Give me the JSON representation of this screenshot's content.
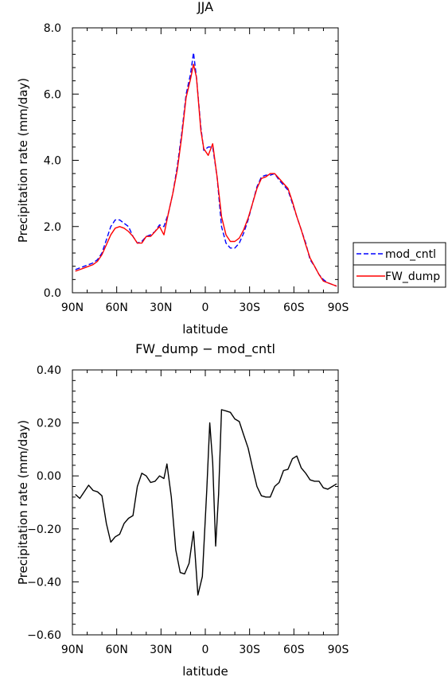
{
  "chart_data": [
    {
      "type": "line",
      "title": "JJA",
      "xlabel": "latitude",
      "ylabel": "Precipitation rate (mm/day)",
      "xlim": [
        90,
        -90
      ],
      "ylim": [
        0,
        8
      ],
      "x_tick_labels": [
        "90N",
        "60N",
        "30N",
        "0",
        "30S",
        "60S",
        "90S"
      ],
      "y_tick_labels": [
        "0.0",
        "2.0",
        "4.0",
        "6.0",
        "8.0"
      ],
      "grid": false,
      "legend_position": "right",
      "series": [
        {
          "name": "mod_cntl",
          "color": "#0000ff",
          "style": "dashed",
          "points": [
            [
              88,
              0.7
            ],
            [
              85,
              0.75
            ],
            [
              82,
              0.8
            ],
            [
              79,
              0.85
            ],
            [
              76,
              0.9
            ],
            [
              73,
              1.0
            ],
            [
              70,
              1.2
            ],
            [
              67,
              1.6
            ],
            [
              64,
              2.0
            ],
            [
              61,
              2.2
            ],
            [
              58,
              2.2
            ],
            [
              55,
              2.1
            ],
            [
              52,
              2.0
            ],
            [
              49,
              1.7
            ],
            [
              46,
              1.5
            ],
            [
              43,
              1.55
            ],
            [
              40,
              1.7
            ],
            [
              37,
              1.75
            ],
            [
              34,
              1.85
            ],
            [
              31,
              2.05
            ],
            [
              28,
              2.0
            ],
            [
              25,
              2.4
            ],
            [
              22,
              3.0
            ],
            [
              19,
              3.8
            ],
            [
              16,
              4.8
            ],
            [
              13,
              6.0
            ],
            [
              10,
              6.6
            ],
            [
              8,
              7.25
            ],
            [
              6,
              6.5
            ],
            [
              3,
              5.0
            ],
            [
              1,
              4.3
            ],
            [
              -2,
              4.4
            ],
            [
              -5,
              4.4
            ],
            [
              -8,
              3.5
            ],
            [
              -11,
              2.0
            ],
            [
              -14,
              1.5
            ],
            [
              -17,
              1.35
            ],
            [
              -20,
              1.35
            ],
            [
              -23,
              1.5
            ],
            [
              -26,
              1.8
            ],
            [
              -29,
              2.2
            ],
            [
              -32,
              2.7
            ],
            [
              -35,
              3.2
            ],
            [
              -38,
              3.5
            ],
            [
              -41,
              3.55
            ],
            [
              -44,
              3.55
            ],
            [
              -47,
              3.6
            ],
            [
              -50,
              3.4
            ],
            [
              -53,
              3.25
            ],
            [
              -56,
              3.1
            ],
            [
              -59,
              2.7
            ],
            [
              -62,
              2.3
            ],
            [
              -65,
              1.9
            ],
            [
              -68,
              1.5
            ],
            [
              -71,
              1.0
            ],
            [
              -74,
              0.8
            ],
            [
              -77,
              0.55
            ],
            [
              -80,
              0.4
            ],
            [
              -83,
              0.3
            ],
            [
              -86,
              0.25
            ],
            [
              -89,
              0.2
            ]
          ]
        },
        {
          "name": "FW_dump",
          "color": "#ff0000",
          "style": "solid",
          "points": [
            [
              88,
              0.65
            ],
            [
              85,
              0.7
            ],
            [
              82,
              0.75
            ],
            [
              79,
              0.8
            ],
            [
              76,
              0.85
            ],
            [
              73,
              0.95
            ],
            [
              70,
              1.15
            ],
            [
              67,
              1.45
            ],
            [
              64,
              1.75
            ],
            [
              61,
              1.95
            ],
            [
              58,
              2.0
            ],
            [
              55,
              1.95
            ],
            [
              52,
              1.85
            ],
            [
              49,
              1.7
            ],
            [
              46,
              1.5
            ],
            [
              43,
              1.5
            ],
            [
              40,
              1.7
            ],
            [
              37,
              1.7
            ],
            [
              34,
              1.85
            ],
            [
              31,
              2.0
            ],
            [
              28,
              1.75
            ],
            [
              25,
              2.4
            ],
            [
              22,
              3.0
            ],
            [
              19,
              3.7
            ],
            [
              16,
              4.7
            ],
            [
              13,
              5.9
            ],
            [
              10,
              6.45
            ],
            [
              8,
              6.9
            ],
            [
              6,
              6.5
            ],
            [
              3,
              4.9
            ],
            [
              1,
              4.35
            ],
            [
              -2,
              4.15
            ],
            [
              -5,
              4.5
            ],
            [
              -8,
              3.5
            ],
            [
              -11,
              2.3
            ],
            [
              -14,
              1.75
            ],
            [
              -17,
              1.55
            ],
            [
              -20,
              1.55
            ],
            [
              -23,
              1.65
            ],
            [
              -26,
              1.9
            ],
            [
              -29,
              2.25
            ],
            [
              -32,
              2.7
            ],
            [
              -35,
              3.15
            ],
            [
              -38,
              3.45
            ],
            [
              -41,
              3.5
            ],
            [
              -44,
              3.6
            ],
            [
              -47,
              3.6
            ],
            [
              -50,
              3.45
            ],
            [
              -53,
              3.3
            ],
            [
              -56,
              3.15
            ],
            [
              -59,
              2.75
            ],
            [
              -62,
              2.3
            ],
            [
              -65,
              1.9
            ],
            [
              -68,
              1.45
            ],
            [
              -71,
              1.05
            ],
            [
              -74,
              0.8
            ],
            [
              -77,
              0.55
            ],
            [
              -80,
              0.35
            ],
            [
              -83,
              0.3
            ],
            [
              -86,
              0.25
            ],
            [
              -89,
              0.2
            ]
          ]
        }
      ]
    },
    {
      "type": "line",
      "title": "FW_dump − mod_cntl",
      "xlabel": "latitude",
      "ylabel": "Precipitation rate (mm/day)",
      "xlim": [
        90,
        -90
      ],
      "ylim": [
        -0.6,
        0.4
      ],
      "x_tick_labels": [
        "90N",
        "60N",
        "30N",
        "0",
        "30S",
        "60S",
        "90S"
      ],
      "y_tick_labels": [
        "−0.60",
        "−0.40",
        "−0.20",
        "0.00",
        "0.20",
        "0.40"
      ],
      "grid": false,
      "series": [
        {
          "color": "#000000",
          "style": "solid",
          "points": [
            [
              88,
              -0.07
            ],
            [
              85,
              -0.085
            ],
            [
              82,
              -0.06
            ],
            [
              79,
              -0.035
            ],
            [
              76,
              -0.055
            ],
            [
              73,
              -0.06
            ],
            [
              70,
              -0.075
            ],
            [
              67,
              -0.18
            ],
            [
              64,
              -0.25
            ],
            [
              61,
              -0.23
            ],
            [
              58,
              -0.22
            ],
            [
              55,
              -0.18
            ],
            [
              52,
              -0.16
            ],
            [
              49,
              -0.15
            ],
            [
              46,
              -0.04
            ],
            [
              43,
              0.01
            ],
            [
              40,
              0.0
            ],
            [
              37,
              -0.025
            ],
            [
              34,
              -0.02
            ],
            [
              31,
              0.0
            ],
            [
              28,
              -0.01
            ],
            [
              26,
              0.045
            ],
            [
              23,
              -0.08
            ],
            [
              20,
              -0.28
            ],
            [
              17,
              -0.365
            ],
            [
              14,
              -0.37
            ],
            [
              11,
              -0.33
            ],
            [
              8,
              -0.21
            ],
            [
              5,
              -0.45
            ],
            [
              2,
              -0.38
            ],
            [
              -1,
              -0.05
            ],
            [
              -3,
              0.2
            ],
            [
              -5,
              0.05
            ],
            [
              -7,
              -0.265
            ],
            [
              -9,
              -0.07
            ],
            [
              -11,
              0.25
            ],
            [
              -14,
              0.245
            ],
            [
              -17,
              0.24
            ],
            [
              -20,
              0.215
            ],
            [
              -23,
              0.205
            ],
            [
              -26,
              0.155
            ],
            [
              -29,
              0.105
            ],
            [
              -32,
              0.03
            ],
            [
              -35,
              -0.04
            ],
            [
              -38,
              -0.075
            ],
            [
              -41,
              -0.08
            ],
            [
              -44,
              -0.08
            ],
            [
              -47,
              -0.04
            ],
            [
              -50,
              -0.025
            ],
            [
              -53,
              0.02
            ],
            [
              -56,
              0.025
            ],
            [
              -59,
              0.065
            ],
            [
              -62,
              0.075
            ],
            [
              -65,
              0.03
            ],
            [
              -68,
              0.01
            ],
            [
              -71,
              -0.015
            ],
            [
              -74,
              -0.02
            ],
            [
              -77,
              -0.02
            ],
            [
              -80,
              -0.045
            ],
            [
              -83,
              -0.05
            ],
            [
              -86,
              -0.04
            ],
            [
              -89,
              -0.03
            ]
          ]
        }
      ]
    }
  ]
}
